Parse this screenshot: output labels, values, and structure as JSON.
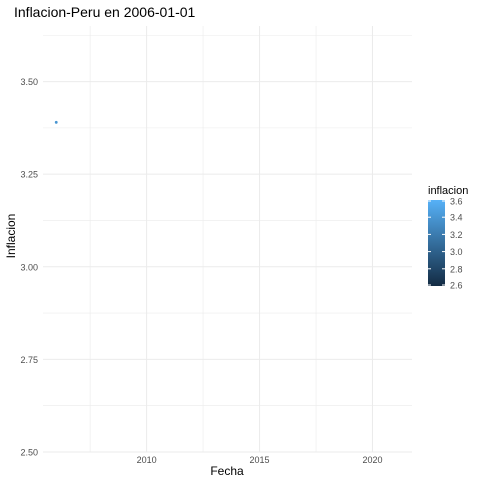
{
  "chart_data": {
    "type": "scatter",
    "title": "Inflacion-Peru en 2006-01-01",
    "xlabel": "Fecha",
    "ylabel": "Inflacion",
    "x_domain": [
      "2005-06-01",
      "2021-10-01"
    ],
    "xticks": [
      {
        "date": "2010-01-01",
        "label": "2010"
      },
      {
        "date": "2015-01-01",
        "label": "2015"
      },
      {
        "date": "2020-01-01",
        "label": "2020"
      }
    ],
    "ylim": [
      2.5,
      3.65
    ],
    "yticks": [
      2.5,
      2.75,
      3.0,
      3.25,
      3.5
    ],
    "ytick_labels": [
      "2.50",
      "2.75",
      "3.00",
      "3.25",
      "3.50"
    ],
    "grid": true,
    "points": [
      {
        "x": "2006-01-01",
        "y": 3.39,
        "inflacion": 3.39
      }
    ],
    "legend": {
      "title": "inflacion",
      "placement": "right",
      "range": [
        2.6,
        3.6
      ],
      "ticks": [
        2.6,
        2.8,
        3.0,
        3.2,
        3.4,
        3.6
      ],
      "tick_labels": [
        "2.6",
        "2.8",
        "3.0",
        "3.2",
        "3.4",
        "3.6"
      ],
      "color_low": "#132b43",
      "color_high": "#56b1f7"
    },
    "colors": {
      "grid": "#ebebeb",
      "text": "#4d4d4d",
      "title": "#000000"
    }
  }
}
